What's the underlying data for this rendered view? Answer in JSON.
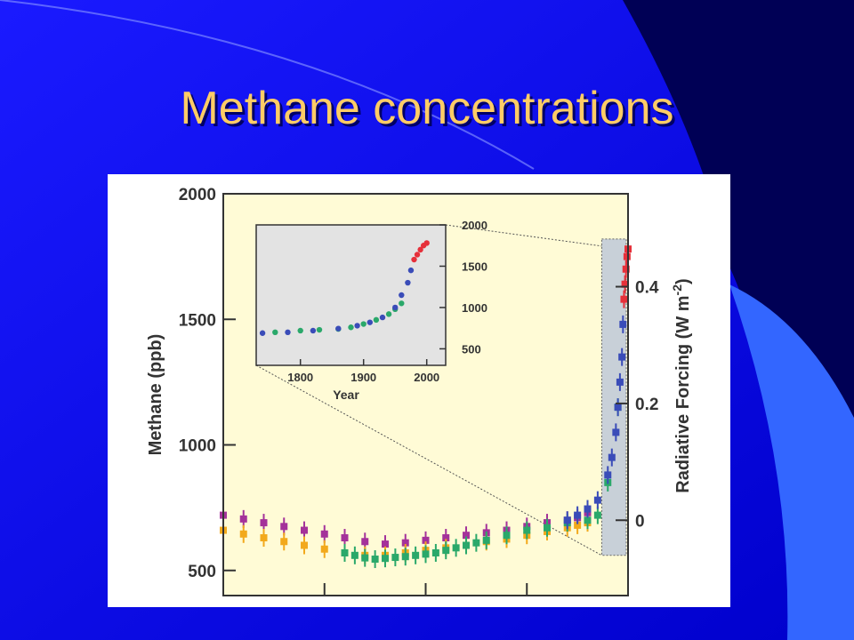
{
  "slide": {
    "title": "Methane concentrations",
    "colors": {
      "background_top": "#1a1aff",
      "background_bottom": "#0000cc",
      "dark_band": "#000055",
      "accent_band": "#3366ff",
      "title": "#ffcc66",
      "plot_background": "#fffbd6",
      "inset_background": "#e3e3e3",
      "highlight_box": "#c8d0d8"
    }
  },
  "chart_data": [
    {
      "id": "main",
      "type": "scatter",
      "title": "",
      "xlabel": "",
      "ylabel": "Methane (ppb)",
      "y2label": "Radiative Forcing (W m",
      "y2label_exponent": "-2",
      "y2label_close": ")",
      "xlim": [
        0,
        2000
      ],
      "ylim": [
        400,
        2000
      ],
      "x_ticks": [
        0,
        500,
        1000,
        1500,
        2000
      ],
      "x_tick_labels_visible": false,
      "y_ticks": [
        500,
        1000,
        1500,
        2000
      ],
      "y_tick_labels": [
        "500",
        "1000",
        "1500",
        "2000"
      ],
      "y2_ticks": [
        0,
        0.2,
        0.4
      ],
      "y2_tick_labels": [
        "0",
        "0.2",
        "0.4"
      ],
      "y2_ppb_at": [
        700,
        1165,
        1630
      ],
      "grid": false,
      "legend": "none",
      "zoom_region": {
        "x": [
          1870,
          2000
        ],
        "y": [
          560,
          1820
        ]
      },
      "series": [
        {
          "color": "#a4329a",
          "x": [
            0,
            100,
            200,
            300,
            400,
            500,
            600,
            700,
            800,
            900,
            1000,
            1100,
            1200,
            1300,
            1400,
            1500,
            1600,
            1700,
            1750,
            1800
          ],
          "y": [
            720,
            705,
            690,
            675,
            660,
            645,
            630,
            615,
            605,
            610,
            620,
            630,
            640,
            650,
            660,
            675,
            690,
            700,
            710,
            730
          ]
        },
        {
          "color": "#f2a91c",
          "x": [
            0,
            100,
            200,
            300,
            400,
            500,
            600,
            700,
            800,
            900,
            1000,
            1100,
            1200,
            1300,
            1400,
            1500,
            1600,
            1700,
            1750,
            1800
          ],
          "y": [
            660,
            645,
            630,
            615,
            600,
            585,
            570,
            560,
            560,
            570,
            580,
            590,
            600,
            615,
            625,
            640,
            655,
            670,
            680,
            690
          ]
        },
        {
          "color": "#2aa86a",
          "x": [
            600,
            650,
            700,
            750,
            800,
            850,
            900,
            950,
            1000,
            1050,
            1100,
            1150,
            1200,
            1250,
            1300,
            1400,
            1500,
            1600,
            1700,
            1800,
            1850,
            1900,
            1950
          ],
          "y": [
            570,
            560,
            550,
            545,
            548,
            552,
            555,
            560,
            565,
            570,
            580,
            590,
            600,
            610,
            620,
            640,
            660,
            670,
            690,
            700,
            720,
            850,
            1150
          ]
        },
        {
          "color": "#3a4cb8",
          "x": [
            1700,
            1750,
            1800,
            1850,
            1900,
            1920,
            1940,
            1950,
            1960,
            1970,
            1975
          ],
          "y": [
            700,
            720,
            745,
            780,
            880,
            950,
            1050,
            1150,
            1250,
            1350,
            1480
          ]
        },
        {
          "color": "#e6303a",
          "x": [
            1980,
            1985,
            1990,
            1995,
            2000
          ],
          "y": [
            1580,
            1640,
            1700,
            1750,
            1780
          ]
        }
      ]
    },
    {
      "id": "inset",
      "type": "scatter",
      "title": "",
      "xlabel": "Year",
      "ylabel": "",
      "xlim": [
        1730,
        2030
      ],
      "ylim": [
        300,
        2000
      ],
      "x_ticks": [
        1800,
        1900,
        2000
      ],
      "x_tick_labels": [
        "1800",
        "1900",
        "2000"
      ],
      "y_ticks": [
        500,
        1000,
        1500,
        2000
      ],
      "y_tick_labels": [
        "500",
        "1000",
        "1500",
        "2000"
      ],
      "grid": false,
      "legend": "none",
      "series": [
        {
          "color": "#2aa86a",
          "x": [
            1760,
            1800,
            1830,
            1860,
            1880,
            1900,
            1920,
            1940,
            1950,
            1960
          ],
          "y": [
            700,
            720,
            730,
            740,
            760,
            800,
            850,
            920,
            980,
            1050
          ]
        },
        {
          "color": "#3a4cb8",
          "x": [
            1740,
            1780,
            1820,
            1860,
            1890,
            1910,
            1930,
            1950,
            1960,
            1970,
            1975
          ],
          "y": [
            690,
            700,
            720,
            745,
            780,
            820,
            880,
            1000,
            1150,
            1300,
            1450
          ]
        },
        {
          "color": "#e6303a",
          "x": [
            1980,
            1985,
            1990,
            1995,
            2000
          ],
          "y": [
            1580,
            1640,
            1700,
            1750,
            1780
          ]
        }
      ]
    }
  ]
}
